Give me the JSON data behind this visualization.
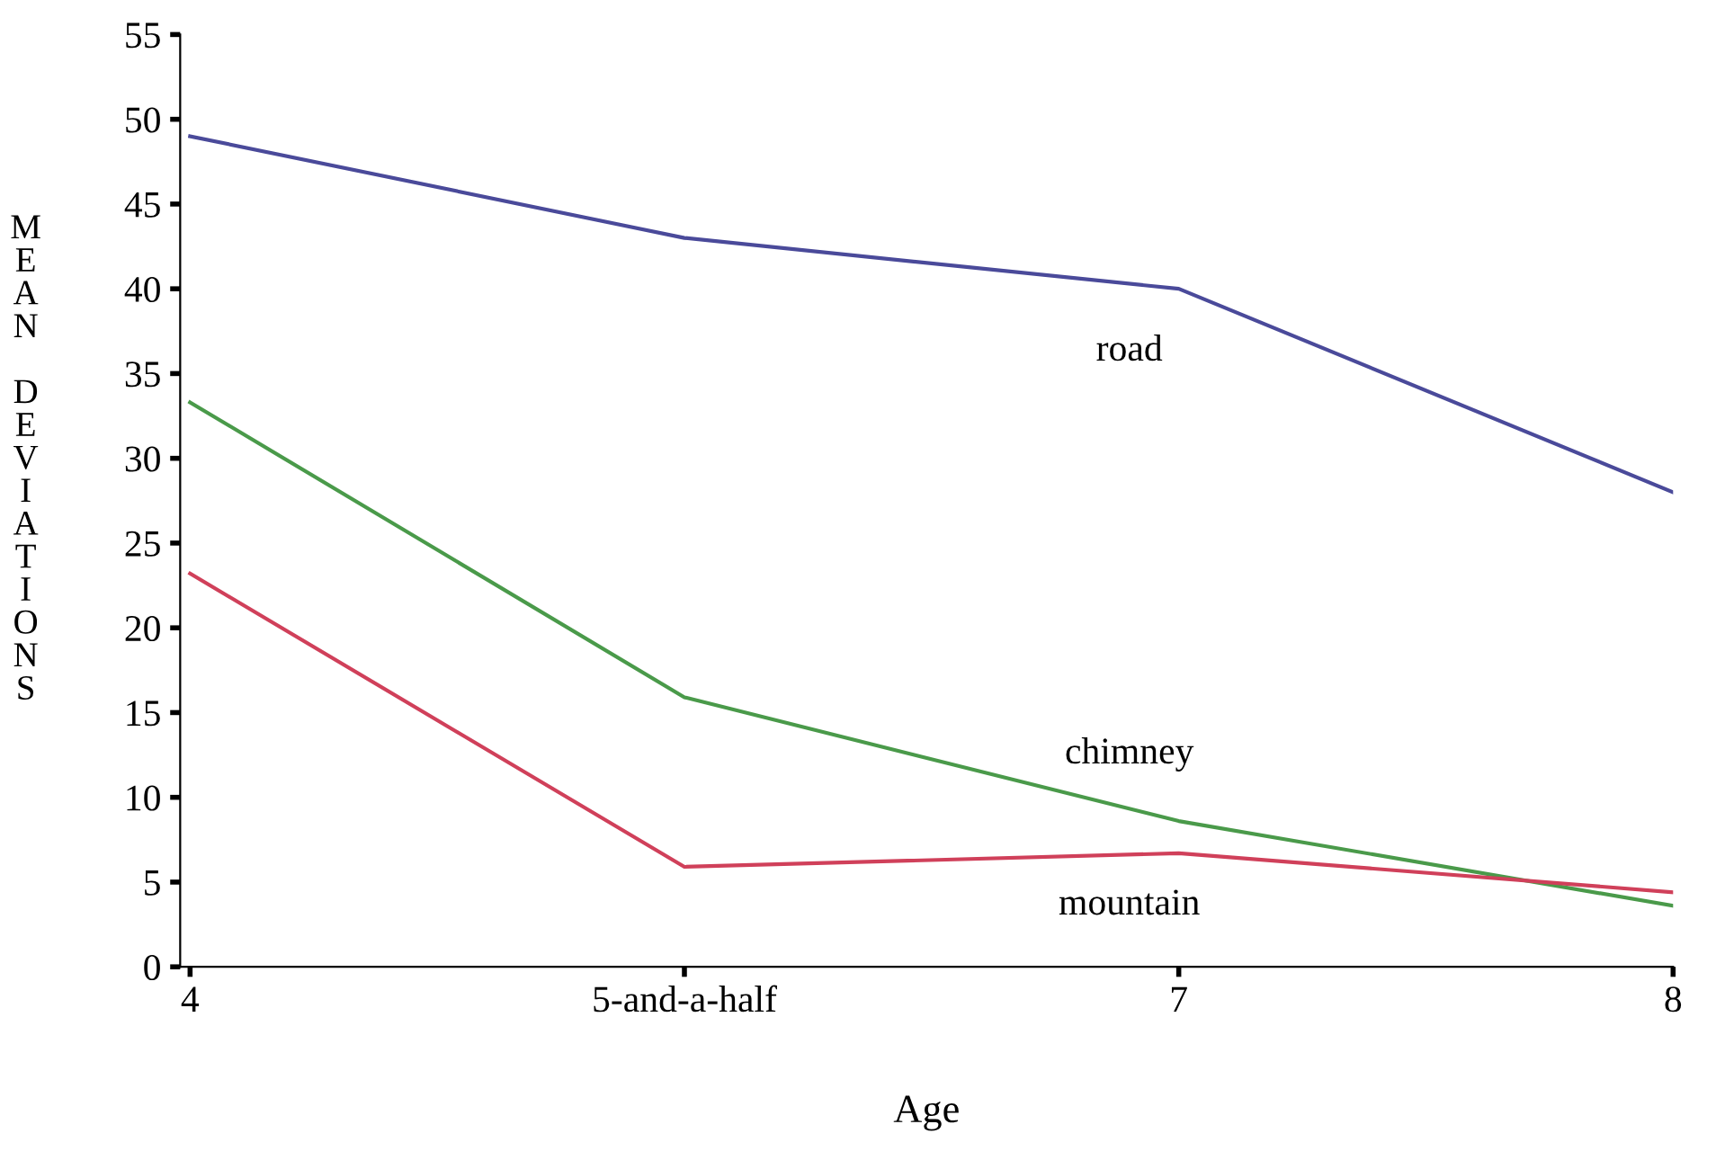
{
  "chart_data": {
    "type": "line",
    "xlabel": "Age",
    "ylabel": "MEAN DEVIATIONS",
    "categories": [
      "4",
      "5-and-a-half",
      "7",
      "8"
    ],
    "series": [
      {
        "name": "road",
        "color": "#4a4a9a",
        "values": [
          49,
          43,
          40,
          28
        ]
      },
      {
        "name": "chimney",
        "color": "#4a9a4a",
        "values": [
          33.3,
          15.9,
          8.6,
          3.6
        ]
      },
      {
        "name": "mountain",
        "color": "#d0405a",
        "values": [
          23.2,
          5.9,
          6.7,
          4.4
        ]
      }
    ],
    "ylim": [
      0,
      55
    ],
    "yticks": [
      0,
      5,
      10,
      15,
      20,
      25,
      30,
      35,
      40,
      45,
      50,
      55
    ],
    "grid": false,
    "legend": false,
    "marker": "none",
    "line_style": "solid"
  }
}
